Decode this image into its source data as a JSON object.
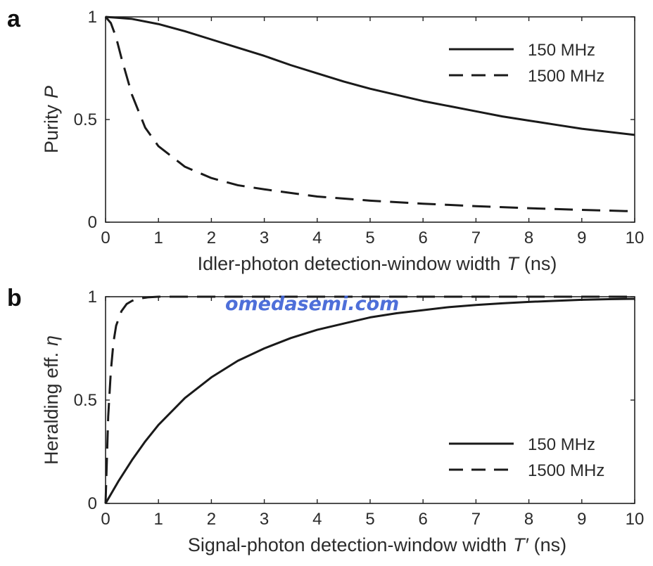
{
  "watermark": "omedasemi.com",
  "chart_data": [
    {
      "panel_label": "a",
      "type": "line",
      "xlabel": "Idler-photon detection-window width",
      "xlabel_symbol": "T",
      "xlabel_unit": "(ns)",
      "ylabel": "Purity",
      "ylabel_symbol": "P",
      "xlim": [
        0,
        10
      ],
      "ylim": [
        0,
        1
      ],
      "xticks": [
        0,
        1,
        2,
        3,
        4,
        5,
        6,
        7,
        8,
        9,
        10
      ],
      "yticks": [
        0,
        0.5,
        1
      ],
      "ytick_labels": [
        "0",
        "0.5",
        "1"
      ],
      "legend_position": "top-right",
      "grid": false,
      "series": [
        {
          "name": "150 MHz",
          "line_style": "solid",
          "color": "#1a1a1a",
          "x": [
            0,
            0.5,
            1,
            1.5,
            2,
            2.5,
            3,
            3.5,
            4,
            4.5,
            5,
            5.5,
            6,
            6.5,
            7,
            7.5,
            8,
            8.5,
            9,
            9.5,
            10
          ],
          "y": [
            1.0,
            0.99,
            0.965,
            0.93,
            0.89,
            0.85,
            0.81,
            0.765,
            0.725,
            0.685,
            0.65,
            0.62,
            0.59,
            0.565,
            0.54,
            0.515,
            0.495,
            0.475,
            0.455,
            0.44,
            0.425
          ]
        },
        {
          "name": "1500 MHz",
          "line_style": "dashed",
          "color": "#1a1a1a",
          "x": [
            0,
            0.1,
            0.2,
            0.3,
            0.5,
            0.75,
            1,
            1.5,
            2,
            2.5,
            3,
            4,
            5,
            6,
            7,
            8,
            9,
            10
          ],
          "y": [
            1.0,
            0.97,
            0.9,
            0.8,
            0.62,
            0.46,
            0.37,
            0.27,
            0.215,
            0.18,
            0.16,
            0.125,
            0.105,
            0.09,
            0.078,
            0.068,
            0.06,
            0.053
          ]
        }
      ]
    },
    {
      "panel_label": "b",
      "type": "line",
      "xlabel": "Signal-photon detection-window width",
      "xlabel_symbol": "T′",
      "xlabel_unit": "(ns)",
      "ylabel": "Heralding eff.",
      "ylabel_symbol": "η",
      "xlim": [
        0,
        10
      ],
      "ylim": [
        0,
        1
      ],
      "xticks": [
        0,
        1,
        2,
        3,
        4,
        5,
        6,
        7,
        8,
        9,
        10
      ],
      "yticks": [
        0,
        0.5,
        1
      ],
      "ytick_labels": [
        "0",
        "0.5",
        "1"
      ],
      "legend_position": "bottom-right",
      "grid": false,
      "series": [
        {
          "name": "150 MHz",
          "line_style": "solid",
          "color": "#1a1a1a",
          "x": [
            0,
            0.25,
            0.5,
            0.75,
            1,
            1.5,
            2,
            2.5,
            3,
            3.5,
            4,
            4.5,
            5,
            5.5,
            6,
            6.5,
            7,
            7.5,
            8,
            8.5,
            9,
            9.5,
            10
          ],
          "y": [
            0,
            0.11,
            0.21,
            0.3,
            0.38,
            0.51,
            0.61,
            0.69,
            0.75,
            0.8,
            0.84,
            0.87,
            0.9,
            0.92,
            0.935,
            0.95,
            0.96,
            0.968,
            0.975,
            0.98,
            0.985,
            0.988,
            0.99
          ]
        },
        {
          "name": "1500 MHz",
          "line_style": "dashed",
          "color": "#1a1a1a",
          "x": [
            0,
            0.05,
            0.1,
            0.15,
            0.2,
            0.3,
            0.4,
            0.5,
            0.6,
            0.8,
            1,
            1.5,
            2,
            3,
            4,
            5,
            6,
            7,
            8,
            9,
            10
          ],
          "y": [
            0,
            0.42,
            0.64,
            0.78,
            0.86,
            0.93,
            0.965,
            0.98,
            0.99,
            0.997,
            1.0,
            1.0,
            1.0,
            1.0,
            1.0,
            1.0,
            1.0,
            1.0,
            1.0,
            1.0,
            1.0
          ]
        }
      ]
    }
  ]
}
